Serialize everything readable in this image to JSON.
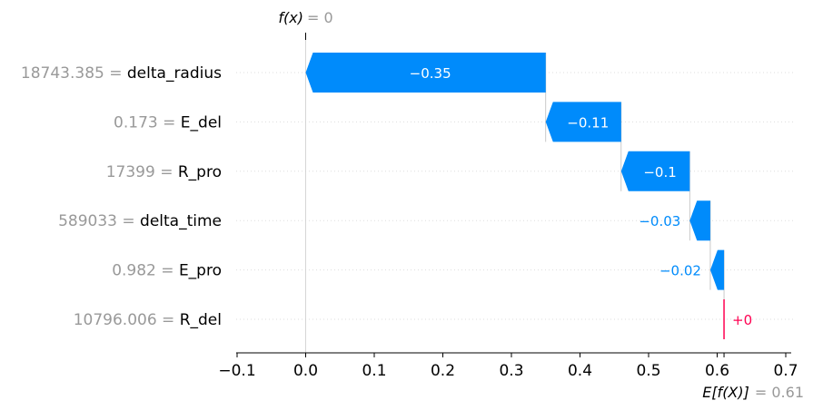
{
  "chart_data": {
    "type": "waterfall",
    "top_label": {
      "name": "f(x)",
      "equals": "= 0",
      "value": 0
    },
    "bottom_label": {
      "name": "E[f(X)]",
      "equals": "= 0.61",
      "value": 0.61
    },
    "features": [
      {
        "value_text": "18743.385",
        "name": "delta_radius",
        "contribution": -0.35,
        "label": "−0.35",
        "label_inside": true
      },
      {
        "value_text": "0.173",
        "name": "E_del",
        "contribution": -0.11,
        "label": "−0.11",
        "label_inside": true
      },
      {
        "value_text": "17399",
        "name": "R_pro",
        "contribution": -0.1,
        "label": "−0.1",
        "label_inside": true
      },
      {
        "value_text": "589033",
        "name": "delta_time",
        "contribution": -0.03,
        "label": "−0.03",
        "label_inside": false
      },
      {
        "value_text": "0.982",
        "name": "E_pro",
        "contribution": -0.02,
        "label": "−0.02",
        "label_inside": false
      },
      {
        "value_text": "10796.006",
        "name": "R_del",
        "contribution": 0.0,
        "label": "+0",
        "label_inside": false
      }
    ],
    "xticks": [
      {
        "value": -0.1,
        "label": "−0.1"
      },
      {
        "value": 0.0,
        "label": "0.0"
      },
      {
        "value": 0.1,
        "label": "0.1"
      },
      {
        "value": 0.2,
        "label": "0.2"
      },
      {
        "value": 0.3,
        "label": "0.3"
      },
      {
        "value": 0.4,
        "label": "0.4"
      },
      {
        "value": 0.5,
        "label": "0.5"
      },
      {
        "value": 0.6,
        "label": "0.6"
      },
      {
        "value": 0.7,
        "label": "0.7"
      }
    ],
    "xlim": [
      -0.11,
      0.72
    ],
    "colors": {
      "negative": "#008bfb",
      "positive": "#ff0051",
      "muted": "#999999",
      "text": "#000000"
    }
  }
}
